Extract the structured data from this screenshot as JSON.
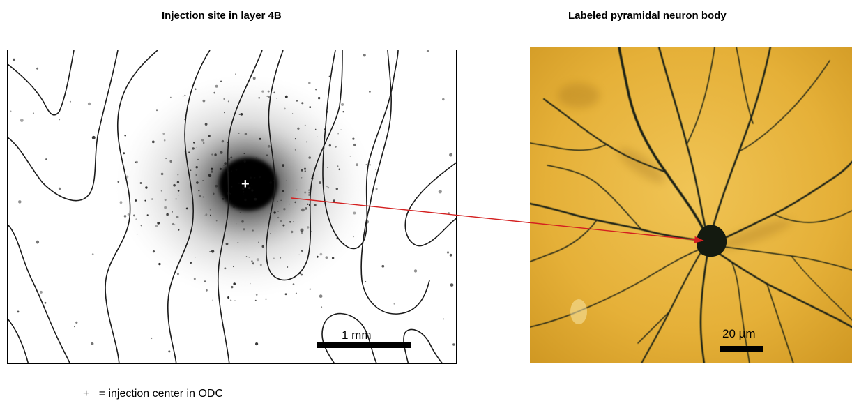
{
  "panels": {
    "left": {
      "title": "Injection site in layer 4B",
      "scale_bar_label": "1 mm",
      "center_marker": "+"
    },
    "right": {
      "title": "Labeled pyramidal neuron body",
      "scale_bar_label": "20 µm"
    }
  },
  "legend": {
    "symbol": "+",
    "text": "= injection center in ODC"
  },
  "colors": {
    "arrow": "#d42020",
    "neuron_background": "#e8b53a",
    "neuron_stain": "#1c2316",
    "odc_contours": "#1a1a1a",
    "tracer_label": "#111111"
  }
}
